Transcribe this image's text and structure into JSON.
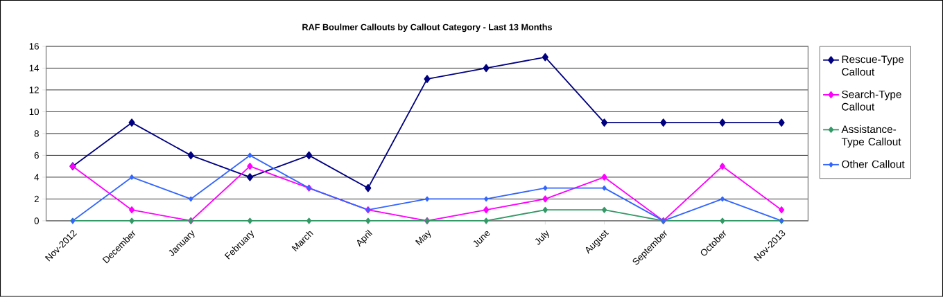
{
  "chart_data": {
    "type": "line",
    "title": "RAF Boulmer Callouts by Callout Category - Last 13 Months",
    "categories": [
      "Nov-2012",
      "December",
      "January",
      "February",
      "March",
      "April",
      "May",
      "June",
      "July",
      "August",
      "September",
      "October",
      "Nov-2013"
    ],
    "series": [
      {
        "name": "Rescue-Type Callout",
        "color": "#000080",
        "values": [
          5,
          9,
          6,
          4,
          6,
          3,
          13,
          14,
          15,
          9,
          9,
          9,
          9
        ]
      },
      {
        "name": "Search-Type Callout",
        "color": "#ff00ff",
        "values": [
          5,
          1,
          0,
          5,
          3,
          1,
          0,
          1,
          2,
          4,
          0,
          5,
          1
        ]
      },
      {
        "name": "Assistance-Type Callout",
        "color": "#339966",
        "values": [
          0,
          0,
          0,
          0,
          0,
          0,
          0,
          0,
          1,
          1,
          0,
          0,
          0
        ]
      },
      {
        "name": "Other Callout",
        "color": "#3366ff",
        "values": [
          0,
          4,
          2,
          6,
          3,
          1,
          2,
          2,
          3,
          3,
          0,
          2,
          0
        ]
      }
    ],
    "ylim": [
      0,
      16
    ],
    "yticks": [
      0,
      2,
      4,
      6,
      8,
      10,
      12,
      14,
      16
    ],
    "grid": "y",
    "legend": "right",
    "marker": "diamond",
    "line_style": "solid"
  }
}
